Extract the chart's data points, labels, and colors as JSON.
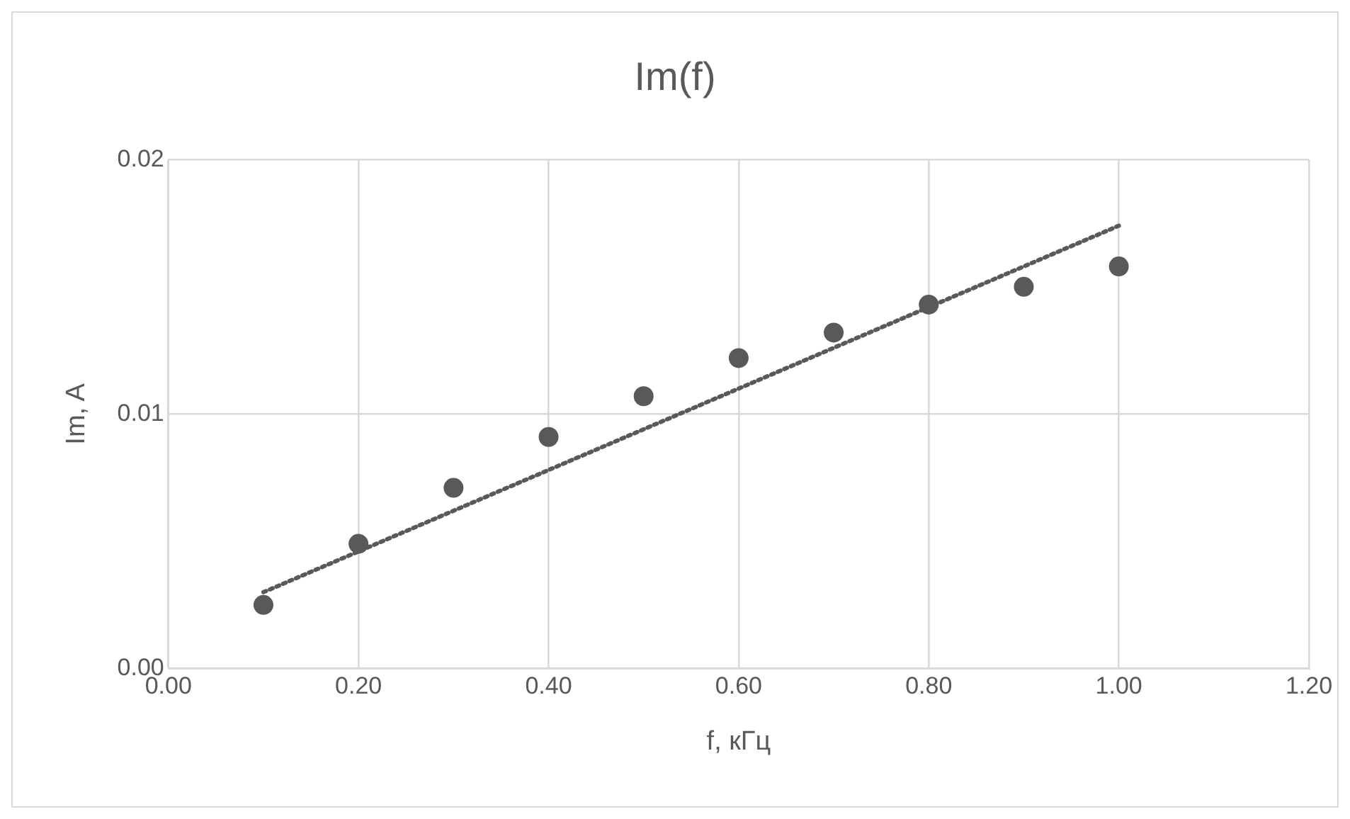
{
  "chart_data": {
    "type": "scatter",
    "title": "Im(f)",
    "xlabel": "f, кГц",
    "ylabel": "Im, A",
    "x": [
      0.1,
      0.2,
      0.3,
      0.4,
      0.5,
      0.6,
      0.7,
      0.8,
      0.9,
      1.0
    ],
    "series": [
      {
        "color": "#595959",
        "values": [
          0.0025,
          0.0049,
          0.0071,
          0.0091,
          0.0107,
          0.0122,
          0.0132,
          0.0143,
          0.015,
          0.0158
        ],
        "marker": "circle"
      },
      {
        "type": "line",
        "x": [
          0.1,
          1.0
        ],
        "color": "#595959",
        "values": [
          0.003,
          0.0174
        ],
        "line_style": "dotted",
        "marker": "none"
      }
    ],
    "xlim": [
      0,
      1.2
    ],
    "xticks": [
      {
        "value": 0,
        "label": "0.00"
      },
      {
        "value": 0.2,
        "label": "0.20"
      },
      {
        "value": 0.4,
        "label": "0.40"
      },
      {
        "value": 0.6,
        "label": "0.60"
      },
      {
        "value": 0.8,
        "label": "0.80"
      },
      {
        "value": 1.0,
        "label": "1.00"
      },
      {
        "value": 1.2,
        "label": "1.20"
      }
    ],
    "ylim": [
      0,
      0.02
    ],
    "yticks": [
      {
        "value": 0,
        "label": "0.00"
      },
      {
        "value": 0.01,
        "label": "0.01"
      },
      {
        "value": 0.02,
        "label": "0.02"
      }
    ],
    "grid": true,
    "legend": false
  }
}
